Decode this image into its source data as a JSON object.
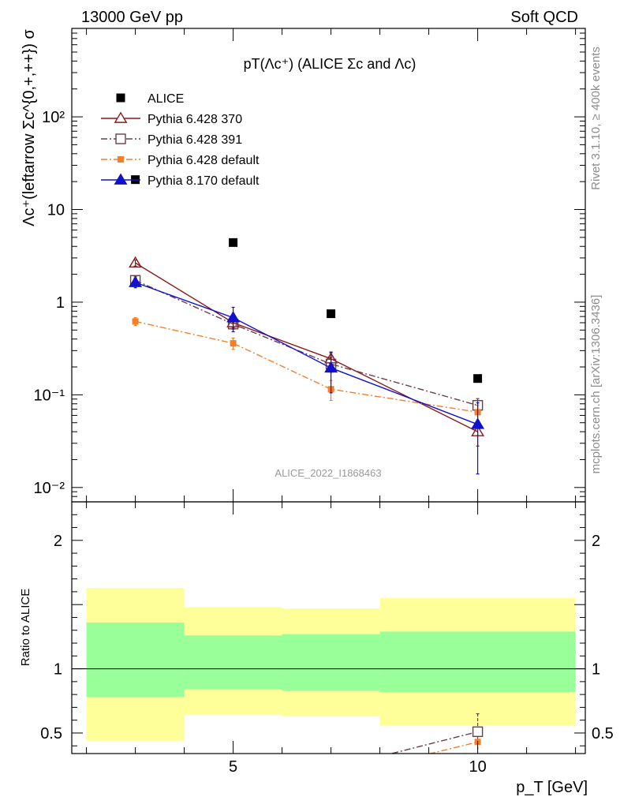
{
  "header": {
    "left": "13000 GeV pp",
    "right": "Soft QCD"
  },
  "side_labels": {
    "rivet": "Rivet 3.1.10, ≥ 400k events",
    "mcplots": "mcplots.cern.ch [arXiv:1306.3436]"
  },
  "chart_data": [
    {
      "type": "scatter",
      "title": "pT(Λc⁺) (ALICE Σc and Λc)",
      "watermark": "ALICE_2022_I1868463",
      "xlabel": "p_T [GeV]",
      "ylabel": "Λc⁺(leftarrow Σc^{0,+,++}) σ",
      "yscale": "log",
      "xlim": [
        1.7,
        12.2
      ],
      "ylim": [
        0.007,
        900
      ],
      "x_ticks": [
        5,
        10
      ],
      "y_ticks": [
        {
          "value": 0.01,
          "label": "10⁻²"
        },
        {
          "value": 0.1,
          "label": "10⁻¹"
        },
        {
          "value": 1,
          "label": "1"
        },
        {
          "value": 10,
          "label": "10"
        },
        {
          "value": 100,
          "label": "10²"
        }
      ],
      "legend_position": "top-left",
      "series": [
        {
          "name": "ALICE",
          "color": "#000000",
          "marker": "square-filled",
          "line": "none",
          "x": [
            3,
            5,
            7,
            10
          ],
          "y": [
            21,
            4.4,
            0.75,
            0.15
          ]
        },
        {
          "name": "Pythia 6.428 370",
          "color": "#8b1a1a",
          "marker": "triangle-open",
          "line": "solid",
          "x": [
            3,
            5,
            7,
            10
          ],
          "y": [
            2.65,
            0.6,
            0.245,
            0.04
          ],
          "err": [
            0.2,
            0.07,
            0.045,
            0.012
          ]
        },
        {
          "name": "Pythia 6.428 391",
          "color": "#6b3e4a",
          "marker": "square-open",
          "line": "dashdot",
          "x": [
            3,
            5,
            7,
            10
          ],
          "y": [
            1.72,
            0.58,
            0.215,
            0.077
          ],
          "err": [
            0.18,
            0.07,
            0.04,
            0.014
          ]
        },
        {
          "name": "Pythia 6.428 default",
          "color": "#f47f2a",
          "marker": "square-filled",
          "line": "dashdot",
          "x": [
            3,
            5,
            7,
            10
          ],
          "y": [
            0.62,
            0.36,
            0.115,
            0.065
          ],
          "err": [
            0.06,
            0.05,
            0.028,
            0.012
          ]
        },
        {
          "name": "Pythia 8.170 default",
          "color": "#1111cc",
          "marker": "triangle-filled",
          "line": "solid",
          "x": [
            3,
            5,
            7,
            10
          ],
          "y": [
            1.63,
            0.68,
            0.195,
            0.048
          ],
          "err": [
            0.2,
            0.2,
            0.09,
            0.034
          ]
        }
      ]
    },
    {
      "type": "area",
      "ylabel": "Ratio to ALICE",
      "ylim": [
        0.34,
        2.3
      ],
      "y_ticks": [
        {
          "value": 0.5,
          "label": "0.5"
        },
        {
          "value": 1,
          "label": "1"
        },
        {
          "value": 2,
          "label": "2"
        }
      ],
      "x_ticks": [
        5,
        10
      ],
      "reference_line": 1,
      "bands": {
        "bins": [
          [
            2,
            4
          ],
          [
            4,
            6
          ],
          [
            6,
            8
          ],
          [
            8,
            12
          ]
        ],
        "outer_color": "#ffff99",
        "inner_color": "#99ff99",
        "outer_lo": [
          0.44,
          0.64,
          0.63,
          0.56
        ],
        "outer_hi": [
          1.63,
          1.48,
          1.47,
          1.55
        ],
        "inner_lo": [
          0.78,
          0.84,
          0.83,
          0.82
        ],
        "inner_hi": [
          1.36,
          1.26,
          1.27,
          1.29
        ]
      },
      "series": [
        {
          "name": "Pythia 6.428 391",
          "color": "#6b3e4a",
          "marker": "square-open",
          "line": "dashdot",
          "x": [
            10
          ],
          "y": [
            0.51
          ],
          "err": [
            0.14
          ]
        },
        {
          "name": "Pythia 6.428 default",
          "color": "#f47f2a",
          "marker": "square-filled",
          "line": "dashdot",
          "x": [
            10
          ],
          "y": [
            0.43
          ],
          "err": [
            0.0
          ]
        }
      ]
    }
  ]
}
